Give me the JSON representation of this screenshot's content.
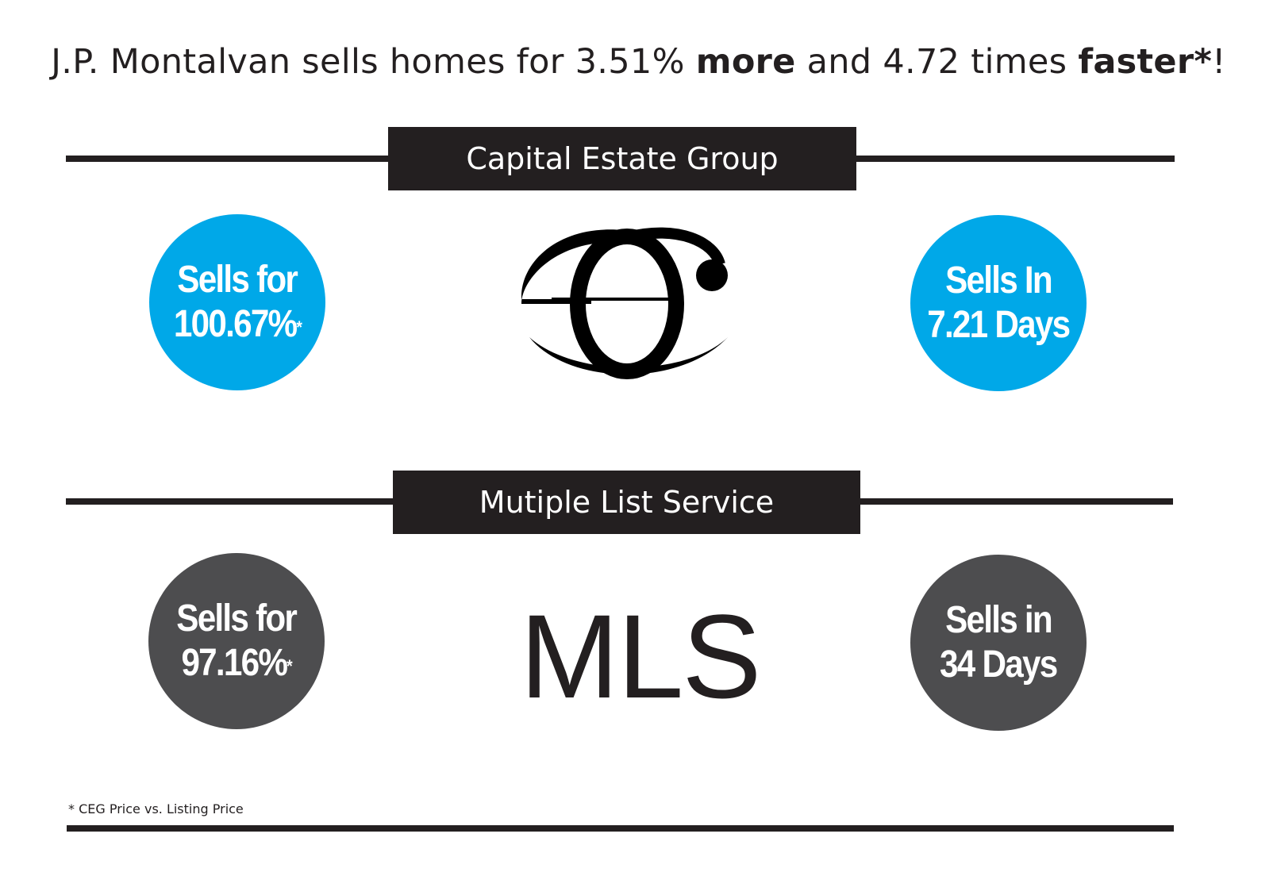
{
  "headline": {
    "part1": "J.P. Montalvan sells homes for 3.51% ",
    "bold1": "more",
    "part2": " and 4.72 times ",
    "bold2": "faster*",
    "part3": "!"
  },
  "ceg_section": {
    "banner": "Capital Estate Group",
    "left_badge": {
      "line1": "Sells for",
      "line2": "100.67%",
      "mark": "*"
    },
    "right_badge": {
      "line1": "Sells In",
      "line2": "7.21 Days"
    },
    "logo_icon": "ceg-monogram-icon"
  },
  "mls_section": {
    "banner": "Mutiple List Service",
    "left_badge": {
      "line1": "Sells for",
      "line2": "97.16%",
      "mark": "*"
    },
    "right_badge": {
      "line1": "Sells in",
      "line2": "34 Days"
    },
    "logo_text": "MLS"
  },
  "footnote": "* CEG Price vs. Listing Price",
  "colors": {
    "dark": "#231f20",
    "blue": "#00a8e8",
    "gray": "#4d4d4f"
  }
}
